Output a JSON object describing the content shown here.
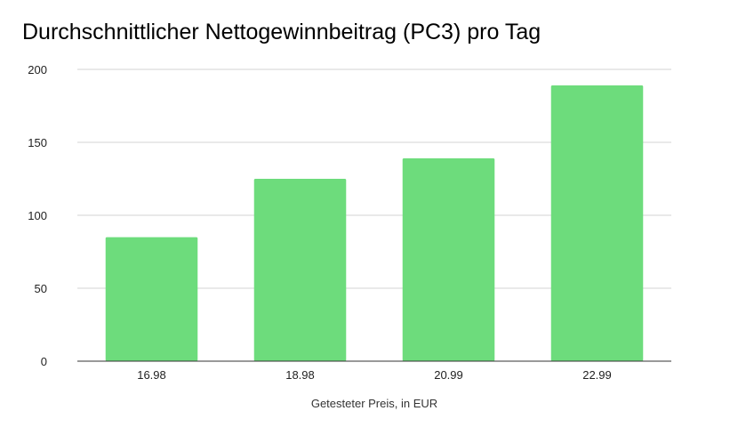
{
  "chart_data": {
    "type": "bar",
    "title": "Durchschnittlicher Nettogewinnbeitrag (PC3) pro Tag",
    "xlabel": "Getesteter Preis, in EUR",
    "ylabel": "",
    "categories": [
      "16.98",
      "18.98",
      "20.99",
      "22.99"
    ],
    "values": [
      85,
      125,
      139,
      189
    ],
    "ylim": [
      0,
      200
    ],
    "yticks": [
      0,
      50,
      100,
      150,
      200
    ],
    "grid": true,
    "legend": "none",
    "bar_color": "#6ddc7c"
  }
}
